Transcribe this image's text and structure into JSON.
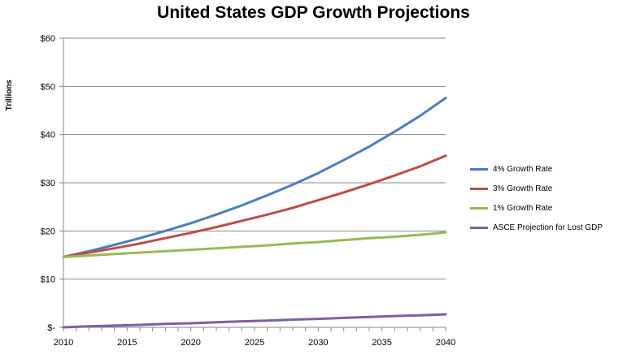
{
  "chart_data": {
    "type": "line",
    "title": "United States GDP Growth Projections",
    "ylabel": "Trillions",
    "xlabel": "",
    "xlim": [
      2010,
      2040
    ],
    "ylim": [
      0,
      60
    ],
    "x_ticks": [
      "2010",
      "2015",
      "2020",
      "2025",
      "2030",
      "2035",
      "2040"
    ],
    "y_ticks": [
      "$-",
      "$10",
      "$20",
      "$30",
      "$40",
      "$50",
      "$60"
    ],
    "grid": "horizontal",
    "legend": "right",
    "x": [
      2010,
      2012,
      2014,
      2016,
      2018,
      2020,
      2022,
      2024,
      2026,
      2028,
      2030,
      2032,
      2034,
      2036,
      2038,
      2040
    ],
    "series": [
      {
        "name": "4% Growth Rate",
        "color": "#4a7ebb",
        "values": [
          14.6,
          15.8,
          17.1,
          18.5,
          20.0,
          21.6,
          23.4,
          25.3,
          27.4,
          29.6,
          32.0,
          34.7,
          37.5,
          40.6,
          43.9,
          47.6
        ]
      },
      {
        "name": "3% Growth Rate",
        "color": "#be4b48",
        "values": [
          14.6,
          15.5,
          16.4,
          17.4,
          18.5,
          19.6,
          20.8,
          22.1,
          23.4,
          24.8,
          26.4,
          28.0,
          29.7,
          31.5,
          33.4,
          35.6
        ]
      },
      {
        "name": "1% Growth Rate",
        "color": "#98b954",
        "values": [
          14.6,
          14.9,
          15.2,
          15.5,
          15.8,
          16.1,
          16.4,
          16.7,
          17.0,
          17.4,
          17.7,
          18.1,
          18.5,
          18.8,
          19.2,
          19.7
        ]
      },
      {
        "name": "ASCE Projection for Lost GDP",
        "color": "#7d60a0",
        "values": [
          0.0,
          0.2,
          0.35,
          0.5,
          0.7,
          0.85,
          1.05,
          1.25,
          1.4,
          1.6,
          1.75,
          1.95,
          2.15,
          2.35,
          2.5,
          2.7
        ]
      }
    ]
  }
}
